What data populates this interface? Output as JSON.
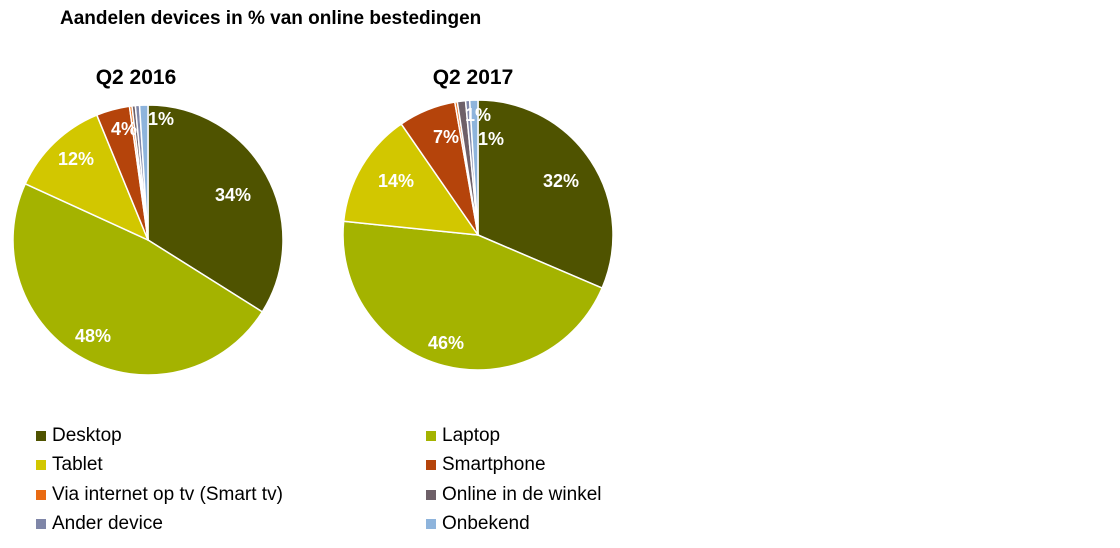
{
  "chart_data": {
    "type": "pie",
    "title": "Aandelen devices in % van online bestedingen",
    "legend_position": "bottom",
    "categories": [
      "Desktop",
      "Laptop",
      "Tablet",
      "Smartphone",
      "Via internet op tv (Smart tv)",
      "Online in de winkel",
      "Ander device",
      "Onbekend"
    ],
    "colors": [
      "#4F5300",
      "#A4B300",
      "#D2C700",
      "#B5440B",
      "#E96B13",
      "#6E6068",
      "#7F86A8",
      "#8EB4DC"
    ],
    "series": [
      {
        "name": "Q2 2016",
        "values": [
          34,
          48,
          12,
          4,
          0.3,
          0.4,
          0.5,
          1
        ],
        "labels": [
          "34%",
          "48%",
          "12%",
          "4%",
          "",
          "",
          "",
          "1%"
        ]
      },
      {
        "name": "Q2 2017",
        "values": [
          32,
          46,
          14,
          7,
          0.3,
          1,
          0.5,
          1
        ],
        "labels": [
          "32%",
          "46%",
          "14%",
          "7%",
          "",
          "1%",
          "",
          "1%"
        ]
      }
    ]
  }
}
